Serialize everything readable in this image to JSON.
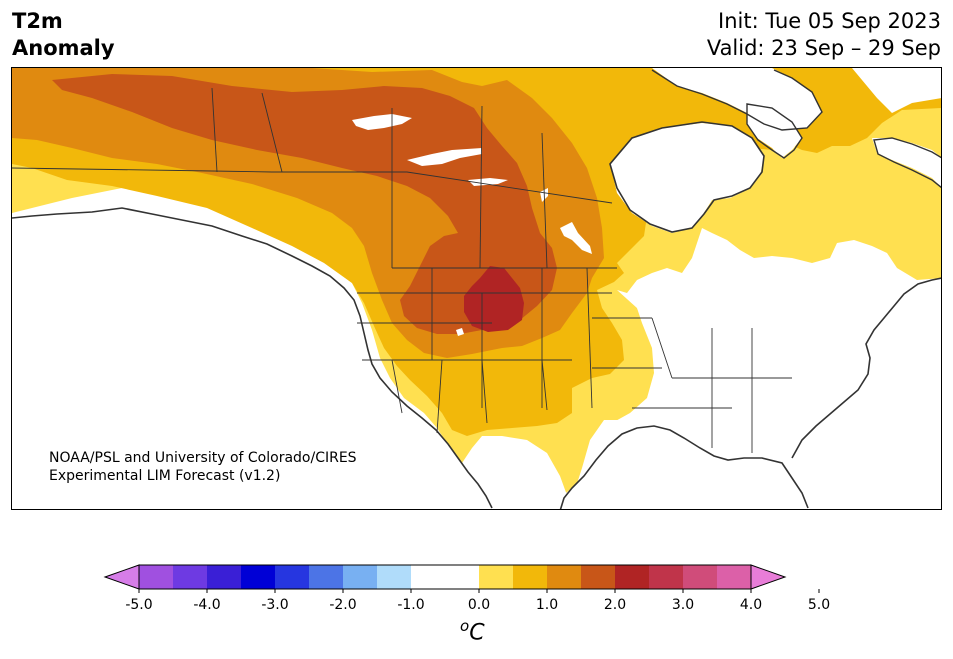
{
  "header": {
    "title_line1": "T2m",
    "title_line2": "Anomaly",
    "init": "Init: Tue 05 Sep 2023",
    "valid": "Valid: 23 Sep – 29 Sep"
  },
  "credit": {
    "line1": "NOAA/PSL and University of Colorado/CIRES",
    "line2": "Experimental LIM Forecast (v1.2)"
  },
  "colorbar": {
    "unit_base": "C",
    "unit_sup": "o",
    "ticks": [
      "-5.0",
      "-4.0",
      "-3.0",
      "-2.0",
      "-1.0",
      "0.0",
      "1.0",
      "2.0",
      "3.0",
      "4.0",
      "5.0"
    ],
    "min_color": "#d67de8",
    "max_color": "#e87dd8",
    "colors": [
      "#a050e0",
      "#6e3ae2",
      "#3a1fd6",
      "#0000d6",
      "#2636e0",
      "#4c74e6",
      "#78b0f2",
      "#b0dcfa",
      "#ffffff",
      "#ffffff",
      "#ffe050",
      "#f2b80a",
      "#e08a10",
      "#c85618",
      "#b02424",
      "#c0344a",
      "#d04c7a",
      "#dc60a8"
    ]
  },
  "map": {
    "anomaly_colors": {
      "0.5": "#ffe050",
      "1.0": "#f2b80a",
      "1.5": "#e08a10",
      "2.0": "#c85618",
      "2.5": "#b02424"
    }
  }
}
